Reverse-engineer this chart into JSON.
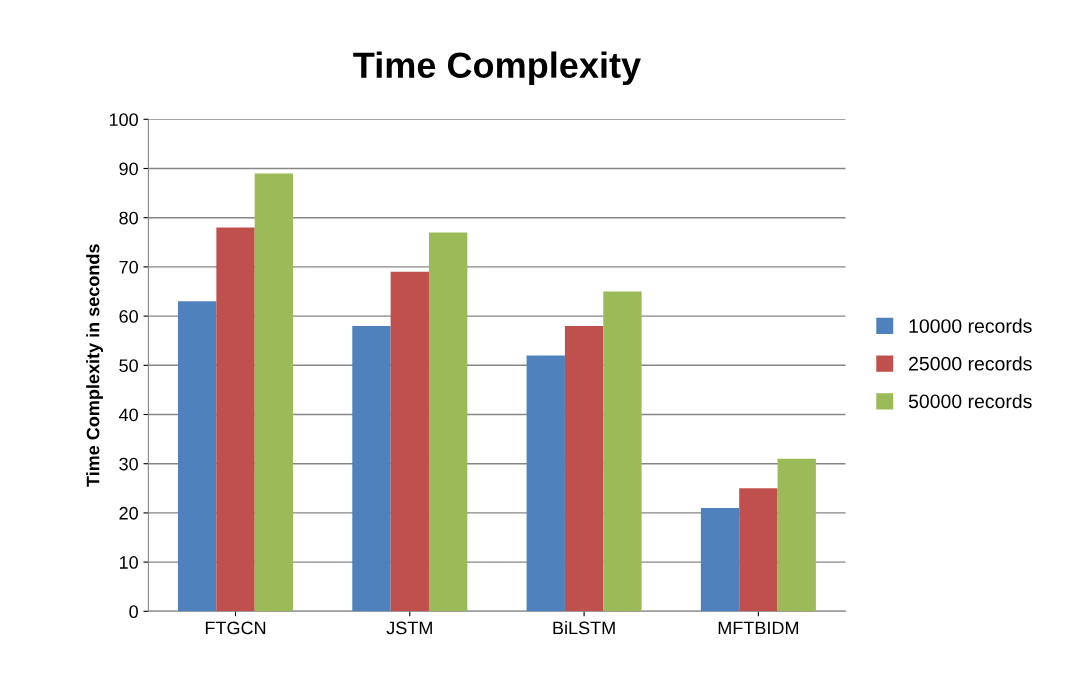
{
  "chart_data": {
    "type": "bar",
    "title": "Time Complexity",
    "ylabel": "Time Complexity in seconds",
    "categories": [
      "FTGCN",
      "JSTM",
      "BiLSTM",
      "MFTBIDM"
    ],
    "series": [
      {
        "name": "10000 records",
        "color": "#4f81bd",
        "values": [
          63,
          58,
          52,
          21
        ]
      },
      {
        "name": "25000 records",
        "color": "#c0504d",
        "values": [
          78,
          69,
          58,
          25
        ]
      },
      {
        "name": "50000 records",
        "color": "#9bbb59",
        "values": [
          89,
          77,
          65,
          31
        ]
      }
    ],
    "ylim": [
      0,
      100
    ],
    "yticks": [
      0,
      10,
      20,
      30,
      40,
      50,
      60,
      70,
      80,
      90,
      100
    ],
    "grid": "y",
    "legend": "right"
  }
}
